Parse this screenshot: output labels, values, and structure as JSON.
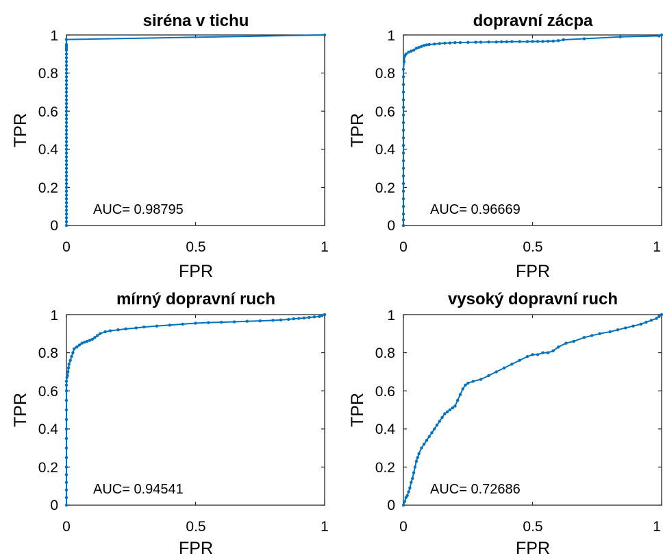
{
  "series_color": "#0072bd",
  "chart_data": [
    {
      "type": "line",
      "title": "siréna v tichu",
      "xlabel": "FPR",
      "ylabel": "TPR",
      "xlim": [
        0,
        1
      ],
      "ylim": [
        0,
        1
      ],
      "xticks": [
        "0",
        "0.5",
        "1"
      ],
      "yticks": [
        "0",
        "0.2",
        "0.4",
        "0.6",
        "0.8",
        "1"
      ],
      "annotation": "AUC= 0.98795",
      "grid": false,
      "series": [
        {
          "x": [
            0,
            0,
            0,
            0,
            0,
            0,
            0,
            0,
            0,
            0,
            0,
            0,
            0,
            0,
            0,
            0,
            0,
            0,
            0,
            0,
            0,
            0,
            0,
            0,
            0,
            0,
            0,
            0,
            0,
            0,
            0,
            0,
            0,
            0,
            0,
            0,
            0,
            0,
            0,
            0,
            0,
            0,
            0,
            0,
            0,
            0,
            0,
            0,
            0,
            0,
            0,
            1
          ],
          "y": [
            0,
            0.02,
            0.04,
            0.06,
            0.08,
            0.1,
            0.12,
            0.14,
            0.16,
            0.18,
            0.2,
            0.22,
            0.24,
            0.26,
            0.28,
            0.3,
            0.32,
            0.34,
            0.36,
            0.38,
            0.4,
            0.42,
            0.44,
            0.46,
            0.48,
            0.5,
            0.52,
            0.54,
            0.56,
            0.58,
            0.6,
            0.62,
            0.64,
            0.66,
            0.68,
            0.7,
            0.72,
            0.74,
            0.76,
            0.78,
            0.8,
            0.82,
            0.84,
            0.86,
            0.88,
            0.9,
            0.92,
            0.93,
            0.94,
            0.95,
            0.976,
            1
          ]
        }
      ]
    },
    {
      "type": "line",
      "title": "dopravní zácpa",
      "xlabel": "FPR",
      "ylabel": "TPR",
      "xlim": [
        0,
        1
      ],
      "ylim": [
        0,
        1
      ],
      "xticks": [
        "0",
        "0.5",
        "1"
      ],
      "yticks": [
        "0",
        "0.2",
        "0.4",
        "0.6",
        "0.8",
        "1"
      ],
      "annotation": "AUC= 0.96669",
      "grid": false,
      "series": [
        {
          "x": [
            0,
            0,
            0,
            0,
            0,
            0,
            0,
            0,
            0,
            0,
            0,
            0,
            0,
            0,
            0,
            0,
            0,
            0,
            0,
            0,
            0,
            0,
            0.003,
            0.005,
            0.01,
            0.02,
            0.03,
            0.04,
            0.05,
            0.06,
            0.07,
            0.08,
            0.09,
            0.1,
            0.12,
            0.14,
            0.16,
            0.18,
            0.2,
            0.22,
            0.25,
            0.28,
            0.3,
            0.33,
            0.36,
            0.38,
            0.4,
            0.42,
            0.45,
            0.48,
            0.5,
            0.52,
            0.54,
            0.56,
            0.58,
            0.6,
            0.62,
            0.7,
            0.84,
            0.99,
            1
          ],
          "y": [
            0,
            0.03,
            0.06,
            0.1,
            0.14,
            0.18,
            0.22,
            0.26,
            0.3,
            0.34,
            0.38,
            0.42,
            0.46,
            0.5,
            0.54,
            0.58,
            0.62,
            0.66,
            0.7,
            0.74,
            0.78,
            0.82,
            0.86,
            0.89,
            0.9,
            0.91,
            0.915,
            0.92,
            0.93,
            0.935,
            0.94,
            0.945,
            0.948,
            0.95,
            0.952,
            0.955,
            0.957,
            0.958,
            0.96,
            0.96,
            0.961,
            0.962,
            0.962,
            0.963,
            0.963,
            0.964,
            0.964,
            0.965,
            0.965,
            0.965,
            0.966,
            0.966,
            0.966,
            0.967,
            0.968,
            0.97,
            0.975,
            0.98,
            0.99,
            0.995,
            1
          ]
        }
      ]
    },
    {
      "type": "line",
      "title": "mírný dopravní ruch",
      "xlabel": "FPR",
      "ylabel": "TPR",
      "xlim": [
        0,
        1
      ],
      "ylim": [
        0,
        1
      ],
      "xticks": [
        "0",
        "0.5",
        "1"
      ],
      "yticks": [
        "0",
        "0.2",
        "0.4",
        "0.6",
        "0.8",
        "1"
      ],
      "annotation": "AUC= 0.94541",
      "grid": false,
      "series": [
        {
          "x": [
            0,
            0,
            0,
            0,
            0,
            0,
            0,
            0,
            0,
            0,
            0,
            0,
            0,
            0,
            0,
            0,
            0.002,
            0.004,
            0.006,
            0.008,
            0.01,
            0.015,
            0.02,
            0.025,
            0.03,
            0.04,
            0.05,
            0.06,
            0.07,
            0.08,
            0.09,
            0.1,
            0.11,
            0.12,
            0.13,
            0.15,
            0.17,
            0.2,
            0.23,
            0.27,
            0.3,
            0.35,
            0.4,
            0.45,
            0.5,
            0.55,
            0.6,
            0.65,
            0.7,
            0.75,
            0.8,
            0.83,
            0.86,
            0.88,
            0.9,
            0.92,
            0.94,
            0.96,
            0.98,
            0.99,
            1
          ],
          "y": [
            0,
            0.04,
            0.08,
            0.12,
            0.16,
            0.2,
            0.25,
            0.3,
            0.35,
            0.4,
            0.45,
            0.5,
            0.55,
            0.6,
            0.63,
            0.65,
            0.67,
            0.68,
            0.7,
            0.72,
            0.74,
            0.76,
            0.78,
            0.8,
            0.82,
            0.83,
            0.84,
            0.85,
            0.855,
            0.86,
            0.865,
            0.87,
            0.88,
            0.89,
            0.9,
            0.91,
            0.915,
            0.92,
            0.925,
            0.93,
            0.935,
            0.94,
            0.945,
            0.95,
            0.955,
            0.958,
            0.96,
            0.962,
            0.965,
            0.967,
            0.97,
            0.972,
            0.975,
            0.978,
            0.98,
            0.982,
            0.985,
            0.988,
            0.99,
            0.995,
            1
          ]
        }
      ]
    },
    {
      "type": "line",
      "title": "vysoký dopravní ruch",
      "xlabel": "FPR",
      "ylabel": "TPR",
      "xlim": [
        0,
        1
      ],
      "ylim": [
        0,
        1
      ],
      "xticks": [
        "0",
        "0.5",
        "1"
      ],
      "yticks": [
        "0",
        "0.2",
        "0.4",
        "0.6",
        "0.8",
        "1"
      ],
      "annotation": "AUC= 0.72686",
      "grid": false,
      "series": [
        {
          "x": [
            0,
            0.005,
            0.01,
            0.015,
            0.02,
            0.025,
            0.03,
            0.035,
            0.04,
            0.045,
            0.05,
            0.055,
            0.06,
            0.07,
            0.08,
            0.09,
            0.1,
            0.11,
            0.12,
            0.13,
            0.14,
            0.15,
            0.16,
            0.17,
            0.18,
            0.19,
            0.2,
            0.21,
            0.22,
            0.23,
            0.24,
            0.25,
            0.27,
            0.3,
            0.33,
            0.36,
            0.39,
            0.42,
            0.45,
            0.48,
            0.5,
            0.52,
            0.54,
            0.56,
            0.58,
            0.6,
            0.63,
            0.66,
            0.7,
            0.73,
            0.76,
            0.8,
            0.83,
            0.86,
            0.89,
            0.92,
            0.94,
            0.96,
            0.98,
            0.99,
            1
          ],
          "y": [
            0,
            0.02,
            0.04,
            0.05,
            0.07,
            0.09,
            0.12,
            0.14,
            0.17,
            0.2,
            0.23,
            0.25,
            0.27,
            0.3,
            0.32,
            0.34,
            0.36,
            0.38,
            0.4,
            0.42,
            0.44,
            0.46,
            0.48,
            0.49,
            0.5,
            0.51,
            0.52,
            0.55,
            0.58,
            0.61,
            0.63,
            0.64,
            0.65,
            0.66,
            0.68,
            0.7,
            0.72,
            0.74,
            0.76,
            0.78,
            0.79,
            0.79,
            0.8,
            0.8,
            0.81,
            0.83,
            0.85,
            0.86,
            0.88,
            0.89,
            0.9,
            0.91,
            0.92,
            0.93,
            0.94,
            0.95,
            0.96,
            0.97,
            0.98,
            0.99,
            1
          ]
        }
      ]
    }
  ]
}
